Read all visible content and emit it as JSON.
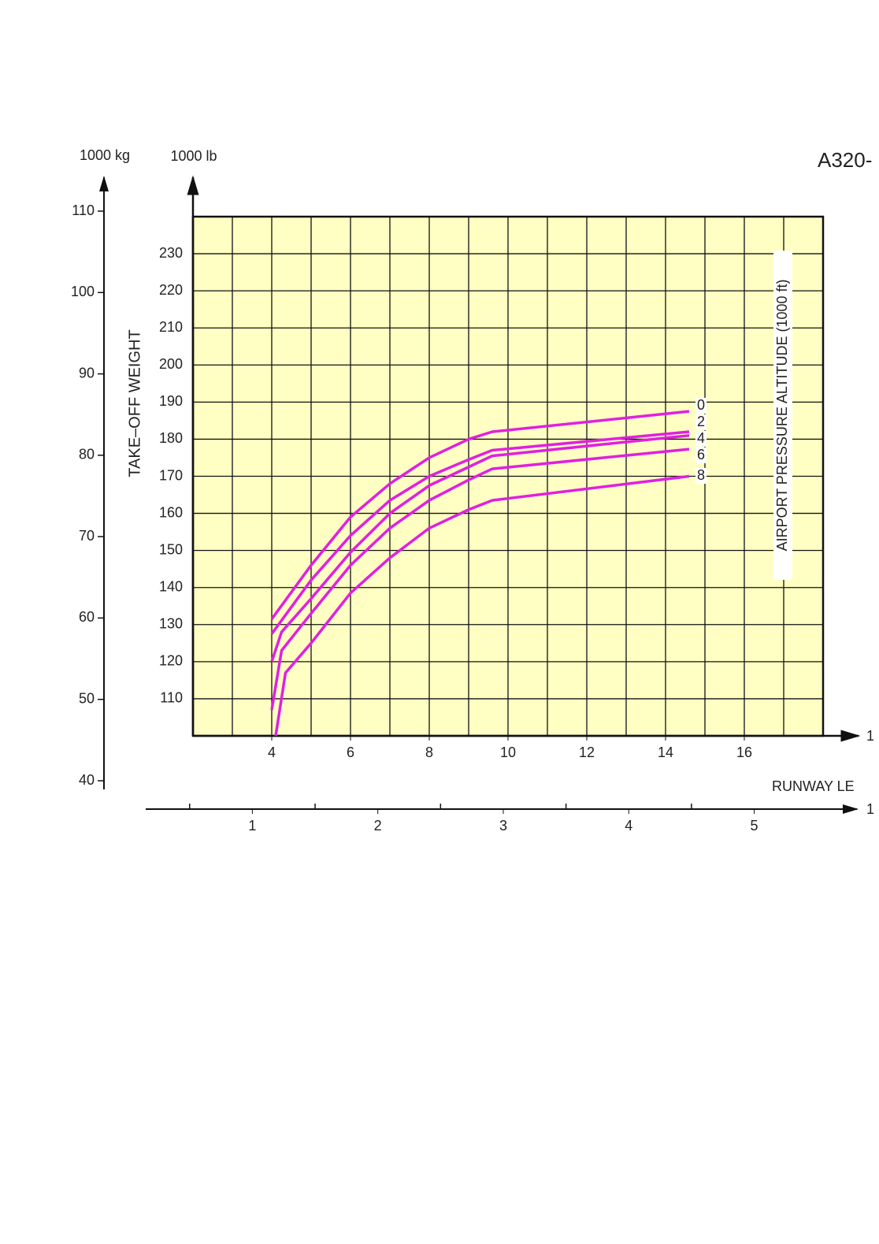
{
  "chart_data": {
    "type": "line",
    "title": "A320-",
    "y_unit": "1000 lb",
    "y2_unit": "1000 kg",
    "ylabel": "TAKE–OFF WEIGHT",
    "legend_title": "AIRPORT PRESSURE ALTITUDE (1000 ft)",
    "xlabel": "RUNWAY LE",
    "x_arrow_label": "1",
    "x2_arrow_label": "1",
    "xlim": [
      2,
      18
    ],
    "xticks": [
      4,
      6,
      8,
      10,
      12,
      14,
      16
    ],
    "xgrid": [
      3,
      4,
      5,
      6,
      7,
      8,
      9,
      10,
      11,
      12,
      13,
      14,
      15,
      16,
      17
    ],
    "ylim": [
      100,
      240
    ],
    "yticks": [
      110,
      120,
      130,
      140,
      150,
      160,
      170,
      180,
      190,
      200,
      210,
      220,
      230
    ],
    "y2lim": [
      40,
      110
    ],
    "y2ticks": [
      40,
      50,
      60,
      70,
      80,
      90,
      100,
      110
    ],
    "x2lim": [
      0.15,
      5.8
    ],
    "x2ticks": [
      1,
      2,
      3,
      4,
      5
    ],
    "x2minor_ticks": [
      0.5,
      1.5,
      2.5,
      3.5,
      4.5
    ],
    "grid": true,
    "plot_background": "#ffffc4",
    "series": [
      {
        "name": "0",
        "color": "#e020e0",
        "x": [
          4,
          5,
          6,
          7,
          8,
          9,
          9.6,
          14.6
        ],
        "values": [
          131.5,
          146,
          159,
          168,
          175,
          180,
          182,
          187.5
        ]
      },
      {
        "name": "2",
        "color": "#e020e0",
        "x": [
          4,
          5,
          6,
          7,
          8,
          9,
          9.6,
          14.6
        ],
        "values": [
          127.5,
          142,
          154,
          163.5,
          170,
          174.5,
          177,
          182
        ]
      },
      {
        "name": "4",
        "color": "#e020e0",
        "x": [
          4,
          4.25,
          5,
          6,
          7,
          8,
          9,
          9.6,
          14.6
        ],
        "values": [
          120,
          128,
          137,
          149.5,
          160,
          167.5,
          172.5,
          175.5,
          181
        ]
      },
      {
        "name": "6",
        "color": "#e020e0",
        "x": [
          4,
          4.25,
          5,
          6,
          7,
          8,
          9,
          9.6,
          14.6
        ],
        "values": [
          107,
          123,
          133,
          146,
          156,
          163.5,
          169,
          172,
          177.3
        ]
      },
      {
        "name": "8",
        "color": "#e020e0",
        "x": [
          4.1,
          4.35,
          5,
          6,
          7,
          8,
          9,
          9.6,
          14.6
        ],
        "values": [
          100,
          117,
          125,
          138.5,
          148,
          156,
          161,
          163.5,
          170
        ]
      }
    ]
  }
}
